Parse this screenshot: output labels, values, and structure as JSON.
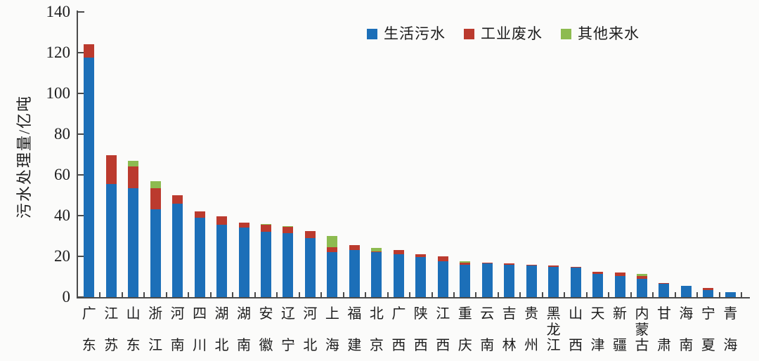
{
  "colors": {
    "background": "#fbfbfa",
    "axis": "#4a4a4a",
    "text": "#1d1d1d",
    "series_blue": "#1c6fb8",
    "series_red": "#bb3a2e",
    "series_green": "#8dbb50"
  },
  "chart_data": {
    "type": "bar",
    "stacked": true,
    "title": "",
    "xlabel": "",
    "ylabel": "污水处理量/亿吨",
    "unit": "亿吨",
    "ylim": [
      0,
      140
    ],
    "yticks": [
      0,
      20,
      40,
      60,
      80,
      100,
      120,
      140
    ],
    "grid": false,
    "legend_position": "top-center",
    "categories": [
      "广东",
      "江苏",
      "山东",
      "浙江",
      "河南",
      "四川",
      "湖北",
      "湖南",
      "安徽",
      "辽宁",
      "河北",
      "上海",
      "福建",
      "北京",
      "广西",
      "陕西",
      "江西",
      "重庆",
      "云南",
      "吉林",
      "贵州",
      "黑龙江",
      "山西",
      "天津",
      "新疆",
      "内蒙古",
      "甘肃",
      "海南",
      "宁夏",
      "青海"
    ],
    "series": [
      {
        "name": "生活污水",
        "key": "domestic-sewage",
        "color": "#1c6fb8",
        "values": [
          117.5,
          55.5,
          53.5,
          43,
          46,
          39,
          35.5,
          34,
          32,
          31.5,
          29,
          22,
          23,
          22,
          21,
          19.5,
          17.5,
          16,
          16.5,
          16,
          15.5,
          15,
          14.5,
          11.5,
          10.5,
          9,
          6.5,
          5.5,
          3.5,
          2.5
        ]
      },
      {
        "name": "工业废水",
        "key": "industrial-wastewater",
        "color": "#bb3a2e",
        "values": [
          6.5,
          14,
          10.5,
          10.5,
          4,
          3,
          4,
          2.5,
          3.5,
          3,
          3.5,
          2.5,
          2.5,
          0.5,
          2,
          1.5,
          2.5,
          1,
          0.5,
          0.5,
          0.5,
          0.5,
          0.5,
          1,
          1.5,
          1.5,
          0.5,
          0,
          1,
          0
        ]
      },
      {
        "name": "其他来水",
        "key": "other-water",
        "color": "#8dbb50",
        "values": [
          0,
          0,
          3,
          3.5,
          0,
          0,
          0,
          0,
          0.5,
          0.5,
          0,
          5.5,
          0,
          1.5,
          0,
          0,
          0,
          0.5,
          0,
          0,
          0,
          0,
          0,
          0,
          0,
          1,
          0,
          0,
          0,
          0
        ]
      }
    ]
  }
}
